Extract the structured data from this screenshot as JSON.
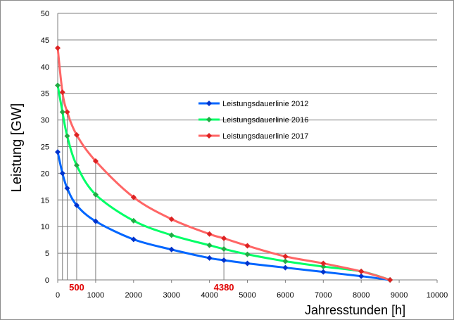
{
  "chart_data": {
    "type": "line",
    "xlabel": "Jahresstunden [h]",
    "ylabel": "Leistung [GW]",
    "xlim": [
      0,
      10000
    ],
    "ylim": [
      0,
      50
    ],
    "x_ticks": [
      "0",
      "1000",
      "2000",
      "3000",
      "4000",
      "5000",
      "6000",
      "7000",
      "8000",
      "9000",
      "10000"
    ],
    "y_ticks": [
      "0",
      "5",
      "10",
      "15",
      "20",
      "25",
      "30",
      "35",
      "40",
      "45",
      "50"
    ],
    "grid": "horizontal",
    "legend_position": "center-right",
    "series": [
      {
        "name": "Leistungsdauerlinie 2012",
        "color": "#0066ff",
        "marker_color": "#0033cc",
        "x": [
          0,
          125,
          250,
          500,
          1000,
          2000,
          3000,
          4000,
          4380,
          5000,
          6000,
          7000,
          8000,
          8760
        ],
        "y": [
          24,
          20,
          17.2,
          14,
          11,
          7.6,
          5.7,
          4.1,
          3.7,
          3.1,
          2.3,
          1.5,
          0.7,
          0
        ]
      },
      {
        "name": "Leistungsdauerlinie 2016",
        "color": "#00ff66",
        "marker_color": "#22aa44",
        "x": [
          0,
          125,
          250,
          500,
          1000,
          2000,
          3000,
          4000,
          4380,
          5000,
          6000,
          7000,
          8000,
          8760
        ],
        "y": [
          36.5,
          31.5,
          27,
          21.5,
          16,
          11.1,
          8.4,
          6.5,
          5.8,
          4.8,
          3.5,
          2.5,
          1.6,
          0
        ]
      },
      {
        "name": "Leistungsdauerlinie 2017",
        "color": "#ff6666",
        "marker_color": "#dd2222",
        "x": [
          0,
          125,
          250,
          500,
          1000,
          2000,
          3000,
          4000,
          4380,
          5000,
          6000,
          7000,
          8000,
          8760
        ],
        "y": [
          43.5,
          35.2,
          31.5,
          27.2,
          22.3,
          15.5,
          11.4,
          8.6,
          7.8,
          6.4,
          4.4,
          3.1,
          1.6,
          0
        ]
      }
    ],
    "annotations": [
      {
        "text": "500",
        "x": 500,
        "color": "#e00000"
      },
      {
        "text": "4380",
        "x": 4380,
        "color": "#e00000"
      }
    ],
    "vertical_markers_x": [
      125,
      250,
      500,
      1000,
      4380
    ]
  }
}
